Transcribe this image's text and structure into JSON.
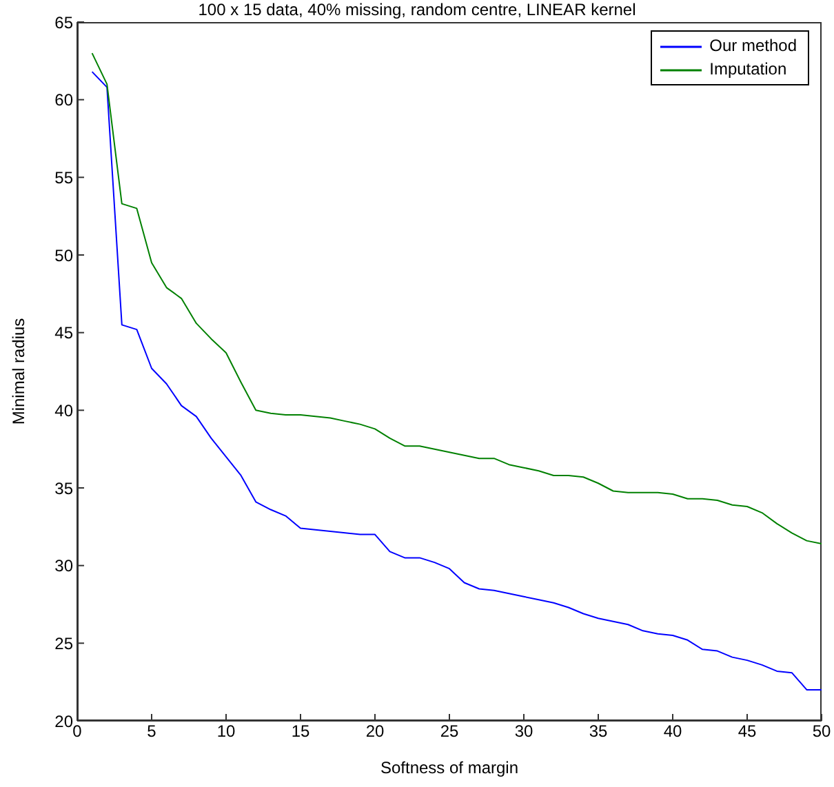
{
  "chart_data": {
    "type": "line",
    "title": "100 x 15 data, 40% missing, random centre, LINEAR kernel",
    "xlabel": "Softness of margin",
    "ylabel": "Minimal radius",
    "x": [
      1,
      2,
      3,
      4,
      5,
      6,
      7,
      8,
      9,
      10,
      11,
      12,
      13,
      14,
      15,
      16,
      17,
      18,
      19,
      20,
      21,
      22,
      23,
      24,
      25,
      26,
      27,
      28,
      29,
      30,
      31,
      32,
      33,
      34,
      35,
      36,
      37,
      38,
      39,
      40,
      41,
      42,
      43,
      44,
      45,
      46,
      47,
      48,
      49,
      50
    ],
    "series": [
      {
        "name": "Our method",
        "color": "#0000ff",
        "values": [
          61.8,
          60.8,
          45.5,
          45.2,
          42.7,
          41.7,
          40.3,
          39.6,
          38.2,
          37,
          35.8,
          34.1,
          33.6,
          33.2,
          32.4,
          32.3,
          32.2,
          32.1,
          32,
          32,
          30.9,
          30.5,
          30.5,
          30.2,
          29.8,
          28.9,
          28.5,
          28.4,
          28.2,
          28,
          27.8,
          27.6,
          27.3,
          26.9,
          26.6,
          26.4,
          26.2,
          25.8,
          25.6,
          25.5,
          25.2,
          24.6,
          24.5,
          24.1,
          23.9,
          23.6,
          23.2,
          23.1,
          22,
          22
        ]
      },
      {
        "name": "Imputation",
        "color": "#008000",
        "values": [
          63,
          61,
          53.3,
          53,
          49.5,
          47.9,
          47.2,
          45.6,
          44.6,
          43.7,
          41.8,
          40,
          39.8,
          39.7,
          39.7,
          39.6,
          39.5,
          39.3,
          39.1,
          38.8,
          38.2,
          37.7,
          37.7,
          37.5,
          37.3,
          37.1,
          36.9,
          36.9,
          36.5,
          36.3,
          36.1,
          35.8,
          35.8,
          35.7,
          35.3,
          34.8,
          34.7,
          34.7,
          34.7,
          34.6,
          34.3,
          34.3,
          34.2,
          33.9,
          33.8,
          33.4,
          32.7,
          32.1,
          31.6,
          31.4
        ]
      }
    ],
    "xlim": [
      0,
      50
    ],
    "xticks": [
      0,
      5,
      10,
      15,
      20,
      25,
      30,
      35,
      40,
      45,
      50
    ],
    "ylim": [
      20,
      65
    ],
    "yticks": [
      20,
      25,
      30,
      35,
      40,
      45,
      50,
      55,
      60,
      65
    ],
    "grid": false,
    "legend": "top right",
    "marker": "none",
    "line_style": "solid"
  }
}
